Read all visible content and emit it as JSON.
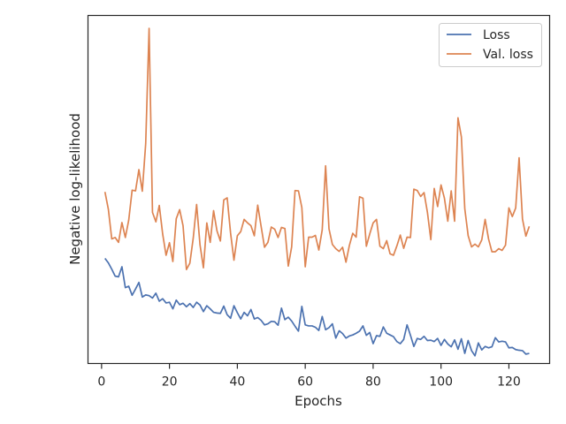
{
  "chart_data": {
    "type": "line",
    "xlabel": "Epochs",
    "ylabel": "Negative log-likelihood",
    "xlim": [
      -4,
      132
    ],
    "ylim": [
      0,
      1
    ],
    "x_ticks": [
      0,
      20,
      40,
      60,
      80,
      100,
      120
    ],
    "y_tick_labels_shown": false,
    "grid": false,
    "legend_position": "top-right",
    "x": [
      1,
      2,
      3,
      4,
      5,
      6,
      7,
      8,
      9,
      10,
      11,
      12,
      13,
      14,
      15,
      16,
      17,
      18,
      19,
      20,
      21,
      22,
      23,
      24,
      25,
      26,
      27,
      28,
      29,
      30,
      31,
      32,
      33,
      34,
      35,
      36,
      37,
      38,
      39,
      40,
      41,
      42,
      43,
      44,
      45,
      46,
      47,
      48,
      49,
      50,
      51,
      52,
      53,
      54,
      55,
      56,
      57,
      58,
      59,
      60,
      61,
      62,
      63,
      64,
      65,
      66,
      67,
      68,
      69,
      70,
      71,
      72,
      73,
      74,
      75,
      76,
      77,
      78,
      79,
      80,
      81,
      82,
      83,
      84,
      85,
      86,
      87,
      88,
      89,
      90,
      91,
      92,
      93,
      94,
      95,
      96,
      97,
      98,
      99,
      100,
      101,
      102,
      103,
      104,
      105,
      106,
      107,
      108,
      109,
      110,
      111,
      112,
      113,
      114,
      115,
      116,
      117,
      118,
      119,
      120,
      121,
      122,
      123,
      124,
      125,
      126
    ],
    "series": [
      {
        "name": "Loss",
        "color": "#4c72b0",
        "values": [
          0.302,
          0.289,
          0.271,
          0.251,
          0.249,
          0.278,
          0.218,
          0.222,
          0.196,
          0.214,
          0.233,
          0.191,
          0.197,
          0.195,
          0.188,
          0.202,
          0.179,
          0.186,
          0.174,
          0.176,
          0.157,
          0.182,
          0.169,
          0.173,
          0.163,
          0.172,
          0.161,
          0.176,
          0.168,
          0.149,
          0.166,
          0.157,
          0.147,
          0.145,
          0.144,
          0.165,
          0.14,
          0.13,
          0.166,
          0.146,
          0.128,
          0.147,
          0.137,
          0.155,
          0.128,
          0.132,
          0.124,
          0.111,
          0.114,
          0.121,
          0.12,
          0.11,
          0.159,
          0.126,
          0.133,
          0.122,
          0.107,
          0.093,
          0.164,
          0.111,
          0.108,
          0.108,
          0.104,
          0.095,
          0.135,
          0.097,
          0.103,
          0.114,
          0.073,
          0.094,
          0.086,
          0.073,
          0.079,
          0.082,
          0.087,
          0.093,
          0.108,
          0.081,
          0.089,
          0.057,
          0.08,
          0.078,
          0.105,
          0.087,
          0.082,
          0.077,
          0.063,
          0.057,
          0.069,
          0.111,
          0.081,
          0.049,
          0.072,
          0.069,
          0.078,
          0.066,
          0.067,
          0.063,
          0.072,
          0.052,
          0.069,
          0.056,
          0.048,
          0.068,
          0.041,
          0.071,
          0.029,
          0.066,
          0.037,
          0.022,
          0.059,
          0.039,
          0.049,
          0.045,
          0.048,
          0.074,
          0.062,
          0.064,
          0.062,
          0.045,
          0.046,
          0.04,
          0.038,
          0.037,
          0.027,
          0.029
        ]
      },
      {
        "name": "Val. loss",
        "color": "#dd8452",
        "values": [
          0.493,
          0.443,
          0.358,
          0.362,
          0.348,
          0.405,
          0.362,
          0.412,
          0.498,
          0.496,
          0.557,
          0.495,
          0.632,
          0.963,
          0.434,
          0.407,
          0.454,
          0.372,
          0.311,
          0.347,
          0.293,
          0.416,
          0.442,
          0.396,
          0.27,
          0.288,
          0.36,
          0.457,
          0.341,
          0.275,
          0.404,
          0.348,
          0.439,
          0.381,
          0.352,
          0.47,
          0.476,
          0.375,
          0.297,
          0.367,
          0.379,
          0.414,
          0.404,
          0.396,
          0.367,
          0.455,
          0.394,
          0.334,
          0.348,
          0.392,
          0.386,
          0.362,
          0.391,
          0.388,
          0.28,
          0.335,
          0.497,
          0.496,
          0.448,
          0.278,
          0.363,
          0.363,
          0.368,
          0.326,
          0.384,
          0.568,
          0.387,
          0.342,
          0.33,
          0.322,
          0.334,
          0.291,
          0.339,
          0.374,
          0.363,
          0.479,
          0.475,
          0.337,
          0.372,
          0.404,
          0.414,
          0.337,
          0.33,
          0.353,
          0.315,
          0.311,
          0.338,
          0.369,
          0.331,
          0.363,
          0.362,
          0.501,
          0.497,
          0.48,
          0.491,
          0.434,
          0.356,
          0.503,
          0.451,
          0.513,
          0.475,
          0.409,
          0.496,
          0.409,
          0.706,
          0.651,
          0.445,
          0.367,
          0.335,
          0.343,
          0.335,
          0.355,
          0.414,
          0.358,
          0.321,
          0.321,
          0.33,
          0.325,
          0.34,
          0.447,
          0.422,
          0.447,
          0.591,
          0.415,
          0.366,
          0.394
        ]
      }
    ]
  },
  "legend": {
    "items": [
      "Loss",
      "Val. loss"
    ]
  }
}
